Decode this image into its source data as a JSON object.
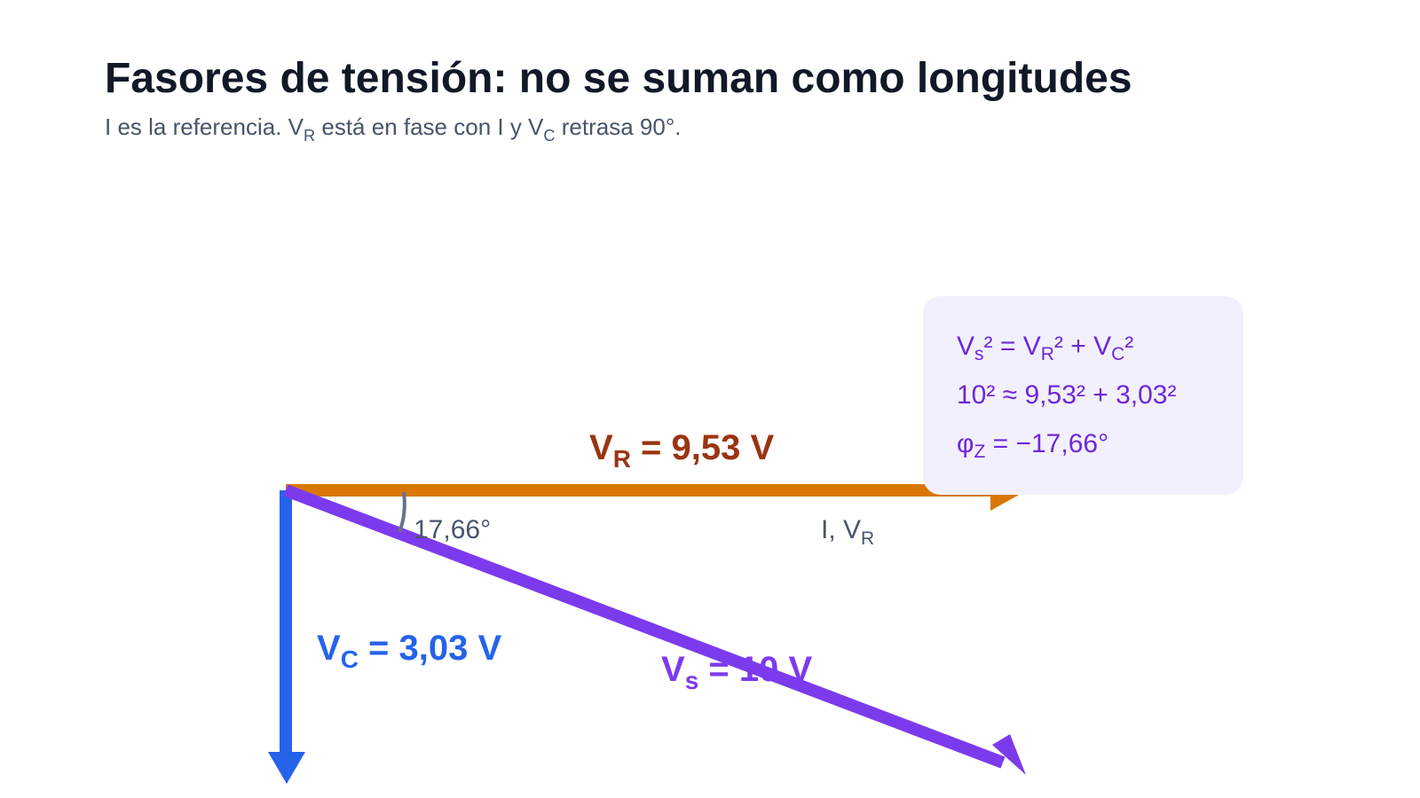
{
  "header": {
    "title": "Fasores de tensión: no se suman como longitudes",
    "subtitle": [
      "I es la referencia. V",
      "R",
      " está en fase con I y V",
      "C",
      " retrasa 90°."
    ]
  },
  "phasors": {
    "vr": {
      "label": [
        "V",
        "R",
        " = 9,53 V"
      ],
      "axis_label": [
        "I, V",
        "R"
      ]
    },
    "vc": {
      "label": [
        "V",
        "C",
        " = 3,03 V"
      ]
    },
    "vs": {
      "label": [
        "V",
        "s",
        " = 10 V"
      ]
    },
    "angle": "17,66°"
  },
  "formula": {
    "lines": [
      [
        "V",
        "s",
        "² = V",
        "R",
        "² + V",
        "C",
        "²"
      ],
      [
        "10² ≈ 9,53² + 3,03²"
      ],
      [
        "φ",
        "Z",
        " = −17,66°"
      ]
    ]
  }
}
